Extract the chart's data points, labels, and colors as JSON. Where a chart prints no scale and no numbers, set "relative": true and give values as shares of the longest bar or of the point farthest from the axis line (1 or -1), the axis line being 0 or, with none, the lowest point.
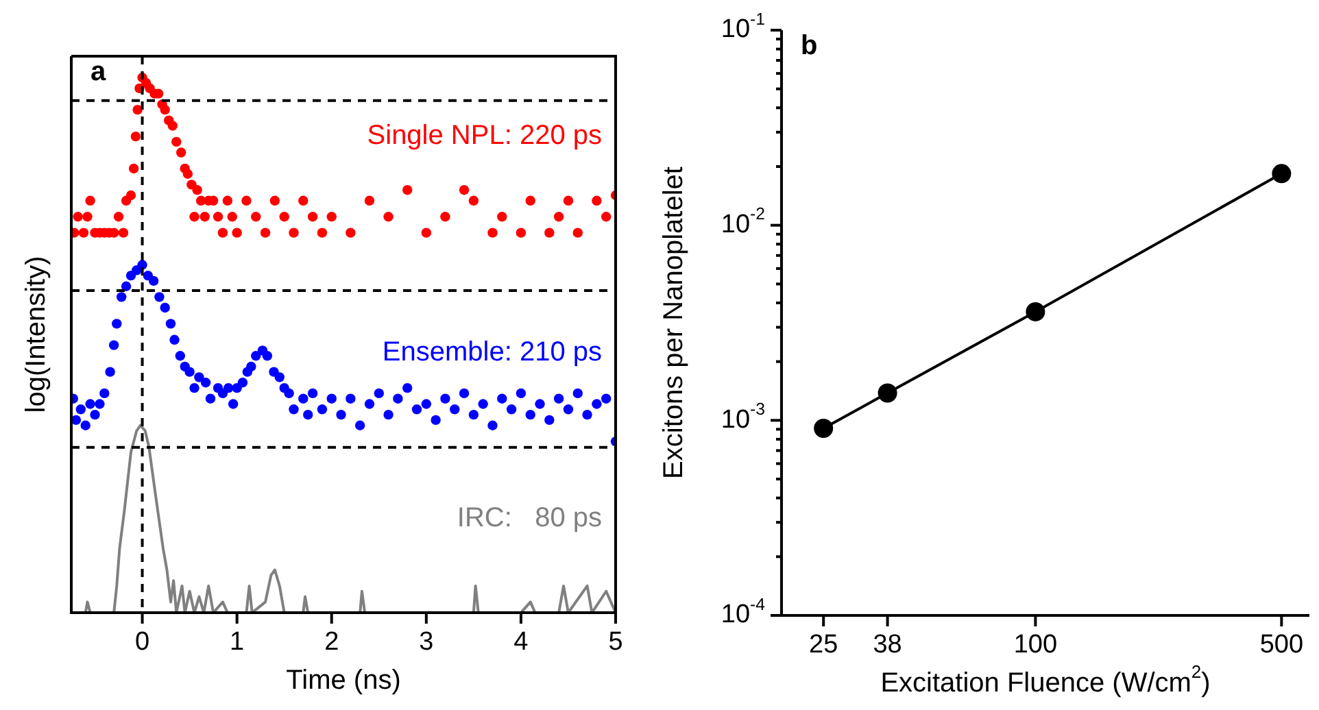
{
  "chart_data": [
    {
      "type": "scatter",
      "title": "a",
      "xlabel": "Time (ns)",
      "ylabel": "log(Intensity)",
      "relative": true,
      "xlim": [
        -0.75,
        5
      ],
      "xticks": [
        0,
        1,
        2,
        3,
        4,
        5
      ],
      "tick_labels": "x",
      "marker": "circle",
      "ref_lines": [
        {
          "axis": "x",
          "value": 0,
          "color": "#000000",
          "line_style": "dashed"
        },
        {
          "axis": "y",
          "value": 0.957,
          "color": "#000000",
          "line_style": "dashed"
        },
        {
          "axis": "y",
          "value": 0.602,
          "color": "#000000",
          "line_style": "dashed"
        },
        {
          "axis": "y",
          "value": 0.309,
          "color": "#000000",
          "line_style": "dashed"
        }
      ],
      "series": [
        {
          "name": "Single NPL: 220 ps",
          "color": "#ff0000",
          "x": [
            -0.72,
            -0.68,
            -0.62,
            -0.58,
            -0.55,
            -0.5,
            -0.45,
            -0.4,
            -0.35,
            -0.3,
            -0.25,
            -0.2,
            -0.17,
            -0.12,
            -0.09,
            -0.07,
            -0.05,
            -0.03,
            0,
            0.04,
            0.08,
            0.13,
            0.17,
            0.21,
            0.24,
            0.28,
            0.32,
            0.36,
            0.41,
            0.45,
            0.48,
            0.52,
            0.55,
            0.58,
            0.62,
            0.66,
            0.7,
            0.75,
            0.8,
            0.85,
            0.9,
            0.95,
            1.0,
            1.1,
            1.2,
            1.3,
            1.4,
            1.5,
            1.6,
            1.7,
            1.8,
            1.9,
            2.0,
            2.2,
            2.4,
            2.6,
            2.8,
            3.0,
            3.2,
            3.4,
            3.5,
            3.7,
            3.8,
            4.0,
            4.1,
            4.3,
            4.4,
            4.5,
            4.6,
            4.8,
            4.9,
            5.0
          ],
          "values": [
            0.71,
            0.74,
            0.71,
            0.74,
            0.77,
            0.71,
            0.71,
            0.71,
            0.71,
            0.71,
            0.74,
            0.71,
            0.77,
            0.78,
            0.83,
            0.89,
            0.94,
            0.98,
            1.0,
            0.99,
            0.98,
            0.97,
            0.97,
            0.95,
            0.94,
            0.92,
            0.91,
            0.88,
            0.86,
            0.83,
            0.82,
            0.8,
            0.74,
            0.79,
            0.77,
            0.74,
            0.77,
            0.77,
            0.74,
            0.71,
            0.77,
            0.74,
            0.71,
            0.77,
            0.74,
            0.71,
            0.77,
            0.74,
            0.71,
            0.77,
            0.74,
            0.71,
            0.74,
            0.71,
            0.77,
            0.74,
            0.79,
            0.71,
            0.74,
            0.79,
            0.77,
            0.71,
            0.74,
            0.71,
            0.77,
            0.71,
            0.74,
            0.77,
            0.71,
            0.77,
            0.74,
            0.78
          ]
        },
        {
          "name": "Ensemble: 210 ps",
          "color": "#0000ff",
          "x": [
            -0.73,
            -0.7,
            -0.65,
            -0.6,
            -0.55,
            -0.5,
            -0.45,
            -0.4,
            -0.34,
            -0.3,
            -0.27,
            -0.22,
            -0.17,
            -0.12,
            -0.06,
            0,
            0.06,
            0.12,
            0.18,
            0.24,
            0.3,
            0.34,
            0.4,
            0.45,
            0.5,
            0.55,
            0.6,
            0.67,
            0.72,
            0.8,
            0.85,
            0.91,
            0.96,
            1.0,
            1.06,
            1.11,
            1.15,
            1.2,
            1.27,
            1.32,
            1.39,
            1.45,
            1.5,
            1.55,
            1.6,
            1.7,
            1.75,
            1.8,
            1.9,
            2.0,
            2.1,
            2.2,
            2.3,
            2.4,
            2.5,
            2.6,
            2.7,
            2.8,
            2.9,
            3.0,
            3.1,
            3.2,
            3.3,
            3.4,
            3.5,
            3.6,
            3.7,
            3.8,
            3.9,
            4.0,
            4.1,
            4.2,
            4.3,
            4.4,
            4.5,
            4.6,
            4.7,
            4.8,
            4.9,
            5.0
          ],
          "values": [
            0.4,
            0.36,
            0.38,
            0.35,
            0.39,
            0.37,
            0.39,
            0.41,
            0.45,
            0.5,
            0.54,
            0.59,
            0.61,
            0.63,
            0.64,
            0.65,
            0.63,
            0.62,
            0.59,
            0.57,
            0.54,
            0.51,
            0.48,
            0.46,
            0.45,
            0.42,
            0.44,
            0.43,
            0.4,
            0.42,
            0.41,
            0.42,
            0.39,
            0.42,
            0.43,
            0.45,
            0.46,
            0.48,
            0.49,
            0.48,
            0.45,
            0.44,
            0.42,
            0.41,
            0.38,
            0.4,
            0.37,
            0.41,
            0.38,
            0.4,
            0.37,
            0.4,
            0.35,
            0.39,
            0.41,
            0.37,
            0.4,
            0.42,
            0.38,
            0.39,
            0.36,
            0.4,
            0.38,
            0.41,
            0.37,
            0.39,
            0.35,
            0.4,
            0.38,
            0.41,
            0.37,
            0.39,
            0.36,
            0.4,
            0.38,
            0.41,
            0.37,
            0.39,
            0.4,
            0.32
          ]
        },
        {
          "name": "IRC:   80 ps",
          "color": "#808080",
          "type": "line",
          "marker": "none",
          "x": [
            -0.75,
            -0.6,
            -0.58,
            -0.55,
            -0.3,
            -0.27,
            -0.24,
            -0.19,
            -0.12,
            -0.06,
            -0.02,
            0.03,
            0.07,
            0.14,
            0.22,
            0.26,
            0.3,
            0.33,
            0.36,
            0.42,
            0.45,
            0.5,
            0.55,
            0.6,
            0.65,
            0.7,
            0.75,
            0.85,
            0.9,
            1.1,
            1.13,
            1.16,
            1.3,
            1.36,
            1.4,
            1.45,
            1.5,
            1.7,
            1.72,
            1.75,
            2.3,
            2.32,
            2.35,
            3.5,
            3.52,
            3.55,
            4.0,
            4.1,
            4.15,
            4.4,
            4.45,
            4.5,
            4.7,
            4.75,
            4.9,
            5.0
          ],
          "values": [
            0,
            0,
            0.02,
            0,
            0,
            0.05,
            0.12,
            0.19,
            0.3,
            0.34,
            0.35,
            0.34,
            0.31,
            0.22,
            0.12,
            0.08,
            0.02,
            0.06,
            0,
            0.05,
            0,
            0.04,
            0,
            0.03,
            0,
            0.05,
            0,
            0.02,
            0,
            0,
            0.05,
            0,
            0.02,
            0.07,
            0.08,
            0.05,
            0,
            0,
            0.03,
            0,
            0,
            0.04,
            0,
            0,
            0.05,
            0,
            0,
            0.02,
            0,
            0,
            0.05,
            0,
            0.05,
            0,
            0.04,
            0
          ]
        }
      ]
    },
    {
      "type": "line",
      "title": "b",
      "xlabel": "Excitation Fluence (W/cm$^{2}$)",
      "ylabel": "Excitons per Nanoplatelet",
      "log": "xy",
      "marker": "circle",
      "xlim": [
        19,
        600
      ],
      "xticks": [
        25,
        38,
        100,
        500
      ],
      "ylim": [
        0.0001,
        0.1
      ],
      "yticks": [
        {
          "value": 0.0001,
          "label": "10$^{-4}$"
        },
        {
          "value": 0.0002,
          "label": null
        },
        {
          "value": 0.0003,
          "label": null
        },
        {
          "value": 0.0004,
          "label": null
        },
        {
          "value": 0.0005,
          "label": null
        },
        {
          "value": 0.0006,
          "label": null
        },
        {
          "value": 0.0007,
          "label": null
        },
        {
          "value": 0.0008,
          "label": null
        },
        {
          "value": 0.0009,
          "label": null
        },
        {
          "value": 0.001,
          "label": "10$^{-3}$"
        },
        {
          "value": 0.002,
          "label": null
        },
        {
          "value": 0.003,
          "label": null
        },
        {
          "value": 0.004,
          "label": null
        },
        {
          "value": 0.005,
          "label": null
        },
        {
          "value": 0.006,
          "label": null
        },
        {
          "value": 0.007,
          "label": null
        },
        {
          "value": 0.008,
          "label": null
        },
        {
          "value": 0.009,
          "label": null
        },
        {
          "value": 0.01,
          "label": "10$^{-2}$"
        },
        {
          "value": 0.02,
          "label": null
        },
        {
          "value": 0.03,
          "label": null
        },
        {
          "value": 0.04,
          "label": null
        },
        {
          "value": 0.05,
          "label": null
        },
        {
          "value": 0.06,
          "label": null
        },
        {
          "value": 0.07,
          "label": null
        },
        {
          "value": 0.08,
          "label": null
        },
        {
          "value": 0.09,
          "label": null
        },
        {
          "value": 0.1,
          "label": "10$^{-1}$"
        }
      ],
      "series": [
        {
          "color": "#000000",
          "x": [
            25,
            38,
            100,
            500
          ],
          "values": [
            0.00091,
            0.00138,
            0.0036,
            0.0184
          ]
        }
      ]
    }
  ]
}
